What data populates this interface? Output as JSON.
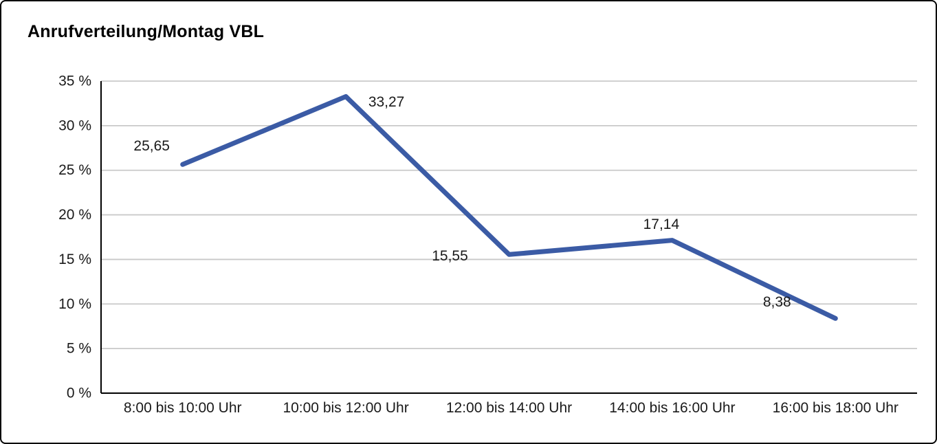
{
  "chart": {
    "title": "Anrufverteilung/Montag VBL"
  },
  "chart_data": {
    "type": "line",
    "title": "Anrufverteilung/Montag VBL",
    "categories": [
      "8:00 bis 10:00 Uhr",
      "10:00 bis 12:00 Uhr",
      "12:00 bis 14:00 Uhr",
      "14:00 bis 16:00 Uhr",
      "16:00 bis 18:00 Uhr"
    ],
    "values": [
      25.65,
      33.27,
      15.55,
      17.14,
      8.38
    ],
    "value_labels": [
      "25,65",
      "33,27",
      "15,55",
      "17,14",
      "8,38"
    ],
    "xlabel": "",
    "ylabel": "",
    "ylim": [
      0,
      35
    ],
    "ytick_step": 5,
    "ytick_suffix": " %",
    "ytick_labels": [
      "0 %",
      "5 %",
      "10 %",
      "15 %",
      "20 %",
      "25 %",
      "30 %",
      "35 %"
    ],
    "grid": "horizontal",
    "legend": "none",
    "line_color": "#3B5BA5",
    "axis_color": "#000000",
    "grid_color": "#c9c9c9",
    "text_color": "#1a1a1a"
  }
}
